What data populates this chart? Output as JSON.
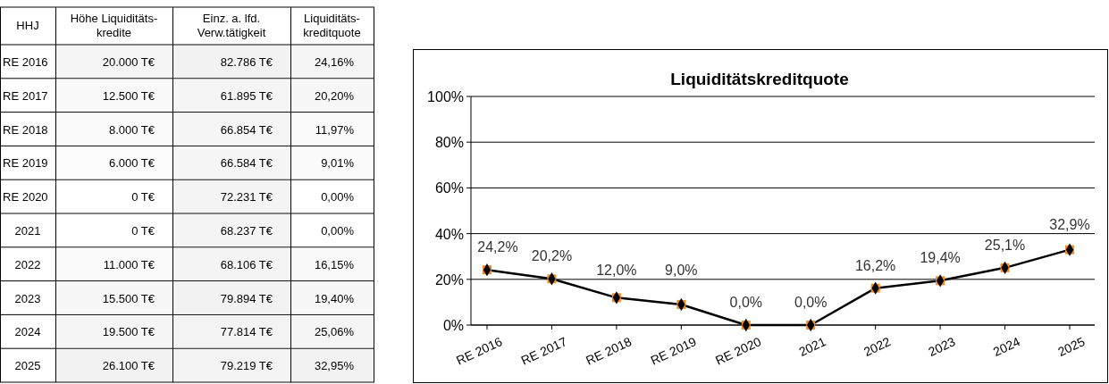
{
  "chart_data": [
    {
      "type": "heatmap",
      "ylabel": "HHJ",
      "categories": [
        "Höhe Liquiditäts-\nkredite",
        "Einz. a. lfd.\nVerw.tätigkeit",
        "Liquiditäts-\nkreditquote"
      ],
      "y_categories": [
        "RE 2016",
        "RE 2017",
        "RE 2018",
        "RE 2019",
        "RE 2020",
        "2021",
        "2022",
        "2023",
        "2024",
        "2025"
      ],
      "cells": [
        [
          20000,
          82786,
          24.16
        ],
        [
          12500,
          61895,
          20.2
        ],
        [
          8000,
          66854,
          11.97
        ],
        [
          6000,
          66584,
          9.01
        ],
        [
          0,
          72231,
          0
        ],
        [
          0,
          68237,
          0
        ],
        [
          11000,
          68106,
          16.15
        ],
        [
          15500,
          79894,
          19.4
        ],
        [
          19500,
          77814,
          25.06
        ],
        [
          26100,
          79219,
          32.95
        ]
      ],
      "cell_labels": [
        [
          "20.000 T€",
          "82.786 T€",
          "24,16%"
        ],
        [
          "12.500 T€",
          "61.895 T€",
          "20,20%"
        ],
        [
          "8.000 T€",
          "66.854 T€",
          "11,97%"
        ],
        [
          "6.000 T€",
          "66.584 T€",
          "9,01%"
        ],
        [
          "0 T€",
          "72.231 T€",
          "0,00%"
        ],
        [
          "0 T€",
          "68.237 T€",
          "0,00%"
        ],
        [
          "11.000 T€",
          "68.106 T€",
          "16,15%"
        ],
        [
          "15.500 T€",
          "79.894 T€",
          "19,40%"
        ],
        [
          "19.500 T€",
          "77.814 T€",
          "25,06%"
        ],
        [
          "26.100 T€",
          "79.219 T€",
          "32,95%"
        ]
      ]
    },
    {
      "type": "line",
      "title": "Liquiditätskreditquote",
      "categories": [
        "RE 2016",
        "RE 2017",
        "RE 2018",
        "RE 2019",
        "RE 2020",
        "2021",
        "2022",
        "2023",
        "2024",
        "2025"
      ],
      "series": [
        {
          "color": "#000000",
          "values": [
            24.16,
            20.2,
            11.97,
            9.01,
            0,
            0,
            16.15,
            19.4,
            25.06,
            32.95
          ],
          "value_labels": [
            "24,2%",
            "20,2%",
            "12,0%",
            "9,0%",
            "0,0%",
            "0,0%",
            "16,2%",
            "19,4%",
            "25,1%",
            "32,9%"
          ]
        }
      ],
      "ylim": [
        0,
        100
      ],
      "yticks": [
        {
          "value": 0,
          "label": "0%"
        },
        {
          "value": 20,
          "label": "20%"
        },
        {
          "value": 40,
          "label": "40%"
        },
        {
          "value": 60,
          "label": "60%"
        },
        {
          "value": 80,
          "label": "80%"
        },
        {
          "value": 100,
          "label": "100%"
        }
      ],
      "grid": "y",
      "marker": "diamond",
      "line_style": "solid"
    }
  ]
}
